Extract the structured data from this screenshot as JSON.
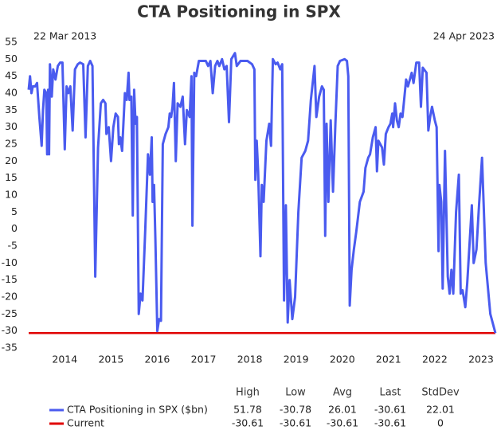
{
  "chart_data": {
    "type": "line",
    "title": "CTA Positioning in SPX",
    "start_label": "22 Mar 2013",
    "end_label": "24 Apr 2023",
    "xlim": [
      2013.22,
      2023.31
    ],
    "xticks": [
      2014,
      2015,
      2016,
      2017,
      2018,
      2019,
      2020,
      2021,
      2022,
      2023
    ],
    "ylim": [
      -35,
      55
    ],
    "yticks": [
      -35,
      -30,
      -25,
      -20,
      -15,
      -10,
      -5,
      0,
      5,
      10,
      15,
      20,
      25,
      30,
      35,
      40,
      45,
      50,
      55
    ],
    "grid": false,
    "series": [
      {
        "name": "CTA Positioning in SPX ($bn)",
        "color": "#4a5bef",
        "x": [
          2013.22,
          2013.25,
          2013.28,
          2013.31,
          2013.36,
          2013.4,
          2013.45,
          2013.5,
          2013.53,
          2013.56,
          2013.6,
          2013.62,
          2013.64,
          2013.66,
          2013.68,
          2013.72,
          2013.75,
          2013.8,
          2013.85,
          2013.9,
          2013.95,
          2014.0,
          2014.04,
          2014.08,
          2014.12,
          2014.17,
          2014.22,
          2014.28,
          2014.33,
          2014.4,
          2014.45,
          2014.5,
          2014.55,
          2014.6,
          2014.66,
          2014.72,
          2014.78,
          2014.83,
          2014.88,
          2014.9,
          2014.95,
          2015.0,
          2015.05,
          2015.1,
          2015.15,
          2015.17,
          2015.2,
          2015.24,
          2015.3,
          2015.34,
          2015.38,
          2015.4,
          2015.44,
          2015.47,
          2015.5,
          2015.53,
          2015.56,
          2015.6,
          2015.64,
          2015.68,
          2015.74,
          2015.8,
          2015.84,
          2015.88,
          2015.9,
          2015.93,
          2015.96,
          2016.0,
          2016.04,
          2016.08,
          2016.12,
          2016.18,
          2016.24,
          2016.27,
          2016.3,
          2016.33,
          2016.36,
          2016.4,
          2016.44,
          2016.5,
          2016.55,
          2016.6,
          2016.64,
          2016.7,
          2016.74,
          2016.76,
          2016.8,
          2016.84,
          2016.9,
          2016.96,
          2017.05,
          2017.1,
          2017.15,
          2017.2,
          2017.25,
          2017.3,
          2017.34,
          2017.4,
          2017.45,
          2017.5,
          2017.55,
          2017.6,
          2017.68,
          2017.72,
          2017.8,
          2017.95,
          2018.05,
          2018.1,
          2018.12,
          2018.15,
          2018.18,
          2018.23,
          2018.26,
          2018.3,
          2018.36,
          2018.42,
          2018.46,
          2018.5,
          2018.56,
          2018.6,
          2018.66,
          2018.7,
          2018.74,
          2018.78,
          2018.82,
          2018.86,
          2018.92,
          2018.98,
          2019.05,
          2019.12,
          2019.2,
          2019.26,
          2019.32,
          2019.4,
          2019.44,
          2019.5,
          2019.56,
          2019.6,
          2019.63,
          2019.66,
          2019.7,
          2019.75,
          2019.8,
          2019.85,
          2019.9,
          2019.95,
          2020.05,
          2020.1,
          2020.13,
          2020.16,
          2020.2,
          2020.25,
          2020.3,
          2020.38,
          2020.46,
          2020.5,
          2020.56,
          2020.6,
          2020.66,
          2020.72,
          2020.75,
          2020.78,
          2020.82,
          2020.86,
          2020.9,
          2020.94,
          2021.0,
          2021.04,
          2021.08,
          2021.1,
          2021.14,
          2021.18,
          2021.22,
          2021.26,
          2021.3,
          2021.38,
          2021.42,
          2021.46,
          2021.5,
          2021.54,
          2021.6,
          2021.66,
          2021.7,
          2021.74,
          2021.82,
          2021.86,
          2021.9,
          2021.94,
          2022.0,
          2022.04,
          2022.08,
          2022.1,
          2022.14,
          2022.17,
          2022.22,
          2022.28,
          2022.32,
          2022.36,
          2022.4,
          2022.46,
          2022.52,
          2022.56,
          2022.6,
          2022.66,
          2022.7,
          2022.8,
          2022.84,
          2022.9,
          2022.96,
          2023.02,
          2023.1,
          2023.2,
          2023.31
        ],
        "values": [
          41,
          45,
          40,
          42,
          42,
          43,
          33,
          24.5,
          35,
          41,
          40,
          22,
          41,
          22,
          48.5,
          39,
          47,
          44,
          48,
          49,
          49,
          23.5,
          42,
          40,
          42,
          29,
          47,
          48.5,
          49,
          48.5,
          27,
          48,
          49.5,
          48,
          -14,
          24,
          37,
          38,
          37,
          28,
          30,
          20,
          30,
          34,
          33,
          25,
          27,
          23,
          40,
          38,
          46,
          38,
          39,
          4,
          41,
          31,
          33,
          -25,
          -19,
          -21,
          0,
          22,
          16,
          27,
          8,
          13,
          -3,
          -30,
          -26.5,
          -27,
          25,
          28,
          30,
          34,
          33,
          36,
          43,
          20,
          37,
          36,
          39,
          25,
          35,
          33,
          45,
          1,
          46,
          45,
          49.5,
          49.5,
          49.5,
          48,
          49.5,
          40,
          48,
          49.5,
          48,
          50,
          47,
          48,
          31.5,
          50,
          51.78,
          48,
          49.5,
          49.5,
          48.5,
          47,
          14.5,
          26,
          17,
          -8,
          13,
          8,
          26,
          31,
          24.5,
          50,
          48.5,
          49,
          47,
          48.5,
          -21,
          7,
          -27.5,
          -15,
          -26.5,
          -20,
          5,
          21,
          23,
          26,
          38,
          48,
          33,
          39,
          42,
          41,
          -2,
          31,
          8,
          32,
          11,
          31,
          48,
          49.5,
          50,
          49.5,
          45,
          -22.5,
          -12,
          -6,
          -1,
          8,
          11,
          18,
          21,
          22,
          27,
          30,
          17,
          26,
          25,
          24,
          19,
          28,
          30,
          31,
          34,
          30,
          37,
          32,
          30,
          34,
          33,
          44,
          42,
          44,
          46,
          43,
          49,
          49,
          36,
          47.5,
          46,
          29,
          33,
          36,
          32,
          30,
          -6.5,
          13,
          8,
          -17.5,
          23,
          -14,
          -19,
          -12,
          -19,
          5,
          16,
          -19,
          -18,
          -23,
          -16,
          7,
          -10,
          -6,
          8,
          21,
          -10,
          -25,
          -30.61
        ]
      },
      {
        "name": "Current",
        "color": "#e00000",
        "x": [
          2013.22,
          2023.31
        ],
        "values": [
          -30.61,
          -30.61
        ]
      }
    ],
    "stats": {
      "columns": [
        "High",
        "Low",
        "Avg",
        "Last",
        "StdDev"
      ],
      "rows": [
        [
          51.78,
          -30.78,
          26.01,
          -30.61,
          22.01
        ],
        [
          -30.61,
          -30.61,
          -30.61,
          -30.61,
          0
        ]
      ]
    }
  }
}
